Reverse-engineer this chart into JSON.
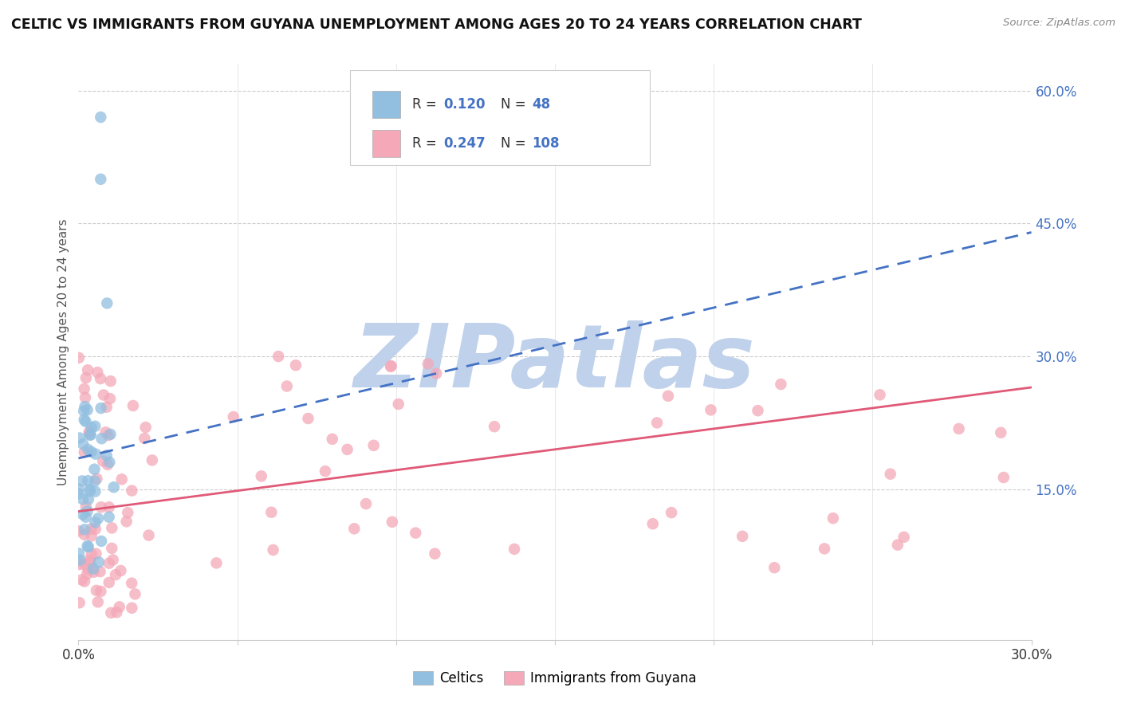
{
  "title": "CELTIC VS IMMIGRANTS FROM GUYANA UNEMPLOYMENT AMONG AGES 20 TO 24 YEARS CORRELATION CHART",
  "source": "Source: ZipAtlas.com",
  "ylabel": "Unemployment Among Ages 20 to 24 years",
  "xlim": [
    0.0,
    0.3
  ],
  "ylim": [
    -0.02,
    0.63
  ],
  "yticks_right": [
    0.15,
    0.3,
    0.45,
    0.6
  ],
  "ytick_right_labels": [
    "15.0%",
    "30.0%",
    "45.0%",
    "60.0%"
  ],
  "celtics_R": "0.120",
  "celtics_N": "48",
  "guyana_R": "0.247",
  "guyana_N": "108",
  "celtics_color": "#92BEE0",
  "guyana_color": "#F4A8B8",
  "celtics_line_color": "#4472C4",
  "guyana_line_color": "#E05A78",
  "watermark": "ZIPatlas",
  "watermark_color_r": 0.75,
  "watermark_color_g": 0.82,
  "watermark_color_b": 0.92,
  "celtic_trend_x0": 0.0,
  "celtic_trend_y0": 0.185,
  "celtic_trend_x1": 0.3,
  "celtic_trend_y1": 0.44,
  "guyana_trend_x0": 0.0,
  "guyana_trend_y0": 0.125,
  "guyana_trend_x1": 0.3,
  "guyana_trend_y1": 0.265
}
